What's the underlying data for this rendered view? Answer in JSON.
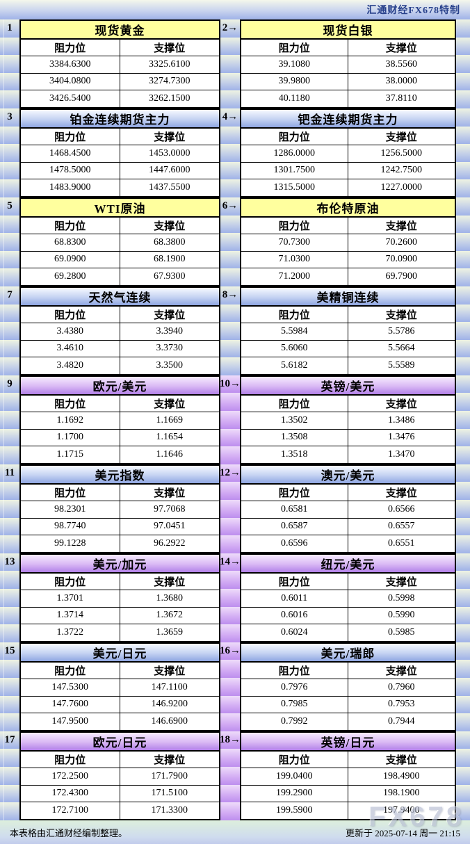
{
  "header": {
    "title": "汇通财经FX678特制"
  },
  "columns": {
    "resistance": "阻力位",
    "support": "支撑位"
  },
  "watermark": "FX678",
  "footer": {
    "left": "本表格由汇通财经编制整理。",
    "right": "更新于 2025-07-14 周一 21:15"
  },
  "colors": {
    "header_yellow": "#ffff9e",
    "header_blue_top": "#f7faff",
    "header_blue_bottom": "#8fa6e2",
    "header_purple_top": "#f7ecff",
    "header_purple_bottom": "#b281e8",
    "band_blue_top": "#eef3e2",
    "band_blue_bottom": "#9fb2e8",
    "band_purple_top": "#eedcfa",
    "band_purple_bottom": "#bd8eee",
    "table_border": "#000000",
    "brand_text": "#27408b",
    "watermark_text": "#b6bdd2"
  },
  "blocks": [
    {
      "num": "1",
      "title": "现货黄金",
      "style": "yellow",
      "resistance": [
        "3384.6300",
        "3404.0800",
        "3426.5400"
      ],
      "support": [
        "3325.6100",
        "3274.7300",
        "3262.1500"
      ]
    },
    {
      "num": "2",
      "pointer": "2→",
      "title": "现货白银",
      "style": "yellow",
      "resistance": [
        "39.1080",
        "39.9800",
        "40.1180"
      ],
      "support": [
        "38.5560",
        "38.0000",
        "37.8110"
      ]
    },
    {
      "num": "3",
      "title": "铂金连续期货主力",
      "style": "blue",
      "resistance": [
        "1468.4500",
        "1478.5000",
        "1483.9000"
      ],
      "support": [
        "1453.0000",
        "1447.6000",
        "1437.5500"
      ]
    },
    {
      "num": "4",
      "pointer": "4→",
      "title": "钯金连续期货主力",
      "style": "blue",
      "resistance": [
        "1286.0000",
        "1301.7500",
        "1315.5000"
      ],
      "support": [
        "1256.5000",
        "1242.7500",
        "1227.0000"
      ]
    },
    {
      "num": "5",
      "title": "WTI原油",
      "style": "yellow",
      "resistance": [
        "68.8300",
        "69.0900",
        "69.2800"
      ],
      "support": [
        "68.3800",
        "68.1900",
        "67.9300"
      ]
    },
    {
      "num": "6",
      "pointer": "6→",
      "title": "布伦特原油",
      "style": "yellow",
      "resistance": [
        "70.7300",
        "71.0300",
        "71.2000"
      ],
      "support": [
        "70.2600",
        "70.0900",
        "69.7900"
      ]
    },
    {
      "num": "7",
      "title": "天然气连续",
      "style": "blue",
      "resistance": [
        "3.4380",
        "3.4610",
        "3.4820"
      ],
      "support": [
        "3.3940",
        "3.3730",
        "3.3500"
      ]
    },
    {
      "num": "8",
      "pointer": "8→",
      "title": "美精铜连续",
      "style": "blue",
      "resistance": [
        "5.5984",
        "5.6060",
        "5.6182"
      ],
      "support": [
        "5.5786",
        "5.5664",
        "5.5589"
      ]
    },
    {
      "num": "9",
      "title": "欧元/美元",
      "style": "purple",
      "resistance": [
        "1.1692",
        "1.1700",
        "1.1715"
      ],
      "support": [
        "1.1669",
        "1.1654",
        "1.1646"
      ]
    },
    {
      "num": "10",
      "pointer": "10→",
      "title": "英镑/美元",
      "style": "purple",
      "resistance": [
        "1.3502",
        "1.3508",
        "1.3518"
      ],
      "support": [
        "1.3486",
        "1.3476",
        "1.3470"
      ]
    },
    {
      "num": "11",
      "title": "美元指数",
      "style": "blue",
      "resistance": [
        "98.2301",
        "98.7740",
        "99.1228"
      ],
      "support": [
        "97.7068",
        "97.0451",
        "96.2922"
      ]
    },
    {
      "num": "12",
      "pointer": "12→",
      "title": "澳元/美元",
      "style": "blue",
      "resistance": [
        "0.6581",
        "0.6587",
        "0.6596"
      ],
      "support": [
        "0.6566",
        "0.6557",
        "0.6551"
      ]
    },
    {
      "num": "13",
      "title": "美元/加元",
      "style": "purple",
      "resistance": [
        "1.3701",
        "1.3714",
        "1.3722"
      ],
      "support": [
        "1.3680",
        "1.3672",
        "1.3659"
      ]
    },
    {
      "num": "14",
      "pointer": "14→",
      "title": "纽元/美元",
      "style": "purple",
      "resistance": [
        "0.6011",
        "0.6016",
        "0.6024"
      ],
      "support": [
        "0.5998",
        "0.5990",
        "0.5985"
      ]
    },
    {
      "num": "15",
      "title": "美元/日元",
      "style": "blue",
      "resistance": [
        "147.5300",
        "147.7600",
        "147.9500"
      ],
      "support": [
        "147.1100",
        "146.9200",
        "146.6900"
      ]
    },
    {
      "num": "16",
      "pointer": "16→",
      "title": "美元/瑞郎",
      "style": "blue",
      "resistance": [
        "0.7976",
        "0.7985",
        "0.7992"
      ],
      "support": [
        "0.7960",
        "0.7953",
        "0.7944"
      ]
    },
    {
      "num": "17",
      "title": "欧元/日元",
      "style": "purple",
      "resistance": [
        "172.2500",
        "172.4300",
        "172.7100"
      ],
      "support": [
        "171.7900",
        "171.5100",
        "171.3300"
      ]
    },
    {
      "num": "18",
      "pointer": "18→",
      "title": "英镑/日元",
      "style": "purple",
      "resistance": [
        "199.0400",
        "199.2900",
        "199.5900"
      ],
      "support": [
        "198.4900",
        "198.1900",
        "197.9400"
      ]
    }
  ]
}
